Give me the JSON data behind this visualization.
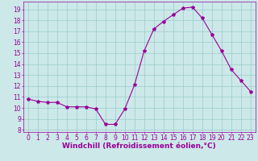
{
  "x": [
    0,
    1,
    2,
    3,
    4,
    5,
    6,
    7,
    8,
    9,
    10,
    11,
    12,
    13,
    14,
    15,
    16,
    17,
    18,
    19,
    20,
    21,
    22,
    23
  ],
  "y": [
    10.8,
    10.6,
    10.5,
    10.5,
    10.1,
    10.1,
    10.1,
    9.9,
    8.5,
    8.5,
    9.9,
    12.1,
    15.2,
    17.2,
    17.9,
    18.5,
    19.1,
    19.2,
    18.2,
    16.7,
    15.2,
    13.5,
    12.5,
    11.5
  ],
  "ylim_min": 7.8,
  "ylim_max": 19.7,
  "xlim_min": -0.5,
  "xlim_max": 23.5,
  "yticks": [
    8,
    9,
    10,
    11,
    12,
    13,
    14,
    15,
    16,
    17,
    18,
    19
  ],
  "xticks": [
    0,
    1,
    2,
    3,
    4,
    5,
    6,
    7,
    8,
    9,
    10,
    11,
    12,
    13,
    14,
    15,
    16,
    17,
    18,
    19,
    20,
    21,
    22,
    23
  ],
  "line_color": "#990099",
  "marker": "*",
  "marker_size": 3,
  "background_color": "#cce8e8",
  "grid_color": "#99cccc",
  "xlabel": "Windchill (Refroidissement éolien,°C)",
  "xlabel_color": "#990099",
  "tick_color": "#990099",
  "tick_fontsize": 5.5,
  "xlabel_fontsize": 6.5,
  "linewidth": 0.8
}
